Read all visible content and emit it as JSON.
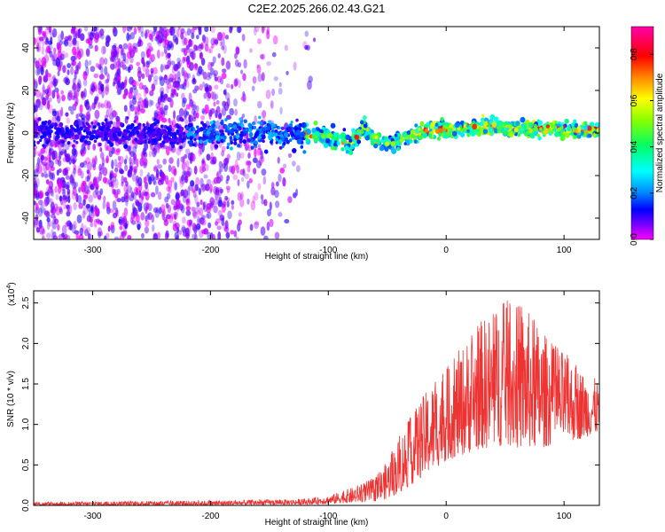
{
  "figure_title": "C2E2.2025.266.02.43.G21",
  "chart_data": [
    {
      "type": "heatmap",
      "title": "C2E2.2025.266.02.43.G21",
      "xlabel": "Height of straight line (km)",
      "ylabel": "Frequency (Hz)",
      "xlim": [
        -350,
        130
      ],
      "ylim": [
        -50,
        50
      ],
      "xticks": [
        -300,
        -200,
        -100,
        0,
        100
      ],
      "yticks": [
        -40,
        -20,
        0,
        20,
        40
      ],
      "xtick_labels": [
        "-300",
        "-200",
        "-100",
        "0",
        "100"
      ],
      "ytick_labels": [
        "-40",
        "-20",
        "0",
        "20",
        "40"
      ],
      "colorbar": {
        "label": "Normalized spectral amplitude",
        "range": [
          0.0,
          0.92
        ],
        "ticks": [
          0.0,
          0.2,
          0.4,
          0.6,
          0.8
        ],
        "tick_labels": [
          "0.0",
          "0.2",
          "0.4",
          "0.6",
          "0.8"
        ],
        "colormap": "rainbow (magenta-blue-cyan-green-yellow-red-magenta)"
      },
      "description_points": {
        "noise_region_x": [
          -350,
          -120
        ],
        "signal_band_center_hz": [
          [
            -350,
            0
          ],
          [
            -200,
            0
          ],
          [
            -150,
            0
          ],
          [
            -100,
            -2
          ],
          [
            -80,
            -5
          ],
          [
            -70,
            3
          ],
          [
            -60,
            -3
          ],
          [
            -45,
            -5
          ],
          [
            -30,
            -1
          ],
          [
            -20,
            1
          ],
          [
            0,
            2
          ],
          [
            30,
            3
          ],
          [
            60,
            2
          ],
          [
            90,
            2
          ],
          [
            130,
            1
          ]
        ],
        "peak_amplitude_x": [
          -30,
          130
        ]
      }
    },
    {
      "type": "line",
      "xlabel": "Height of straight line (km)",
      "ylabel": "SNR (10 * v/v)",
      "scale_label_prefix": "(x10",
      "scale_label_exp": "4",
      "scale_label_suffix": ")",
      "xlim": [
        -350,
        130
      ],
      "ylim": [
        0,
        2.65
      ],
      "xticks": [
        -300,
        -200,
        -100,
        0,
        100
      ],
      "yticks": [
        0.0,
        0.5,
        1.0,
        1.5,
        2.0,
        2.5
      ],
      "xtick_labels": [
        "-300",
        "-200",
        "-100",
        "0",
        "100"
      ],
      "ytick_labels": [
        "0.0",
        "0.5",
        "1.0",
        "1.5",
        "2.0",
        "2.5"
      ],
      "color": "#ee3333",
      "envelope": {
        "x": [
          -350,
          -200,
          -120,
          -100,
          -80,
          -60,
          -50,
          -40,
          -30,
          -20,
          -10,
          0,
          10,
          20,
          30,
          40,
          50,
          60,
          70,
          80,
          90,
          100,
          110,
          120,
          130
        ],
        "upper": [
          0.04,
          0.06,
          0.08,
          0.12,
          0.22,
          0.35,
          0.55,
          0.85,
          1.1,
          1.35,
          1.55,
          1.7,
          1.9,
          2.1,
          2.3,
          2.4,
          2.55,
          2.5,
          2.4,
          2.2,
          2.0,
          1.9,
          1.75,
          1.6,
          1.55
        ],
        "lower": [
          0.0,
          0.0,
          0.01,
          0.02,
          0.03,
          0.05,
          0.08,
          0.15,
          0.25,
          0.35,
          0.45,
          0.55,
          0.6,
          0.65,
          0.7,
          0.7,
          0.75,
          0.7,
          0.7,
          0.7,
          0.75,
          0.8,
          0.8,
          0.85,
          0.9
        ]
      }
    }
  ]
}
